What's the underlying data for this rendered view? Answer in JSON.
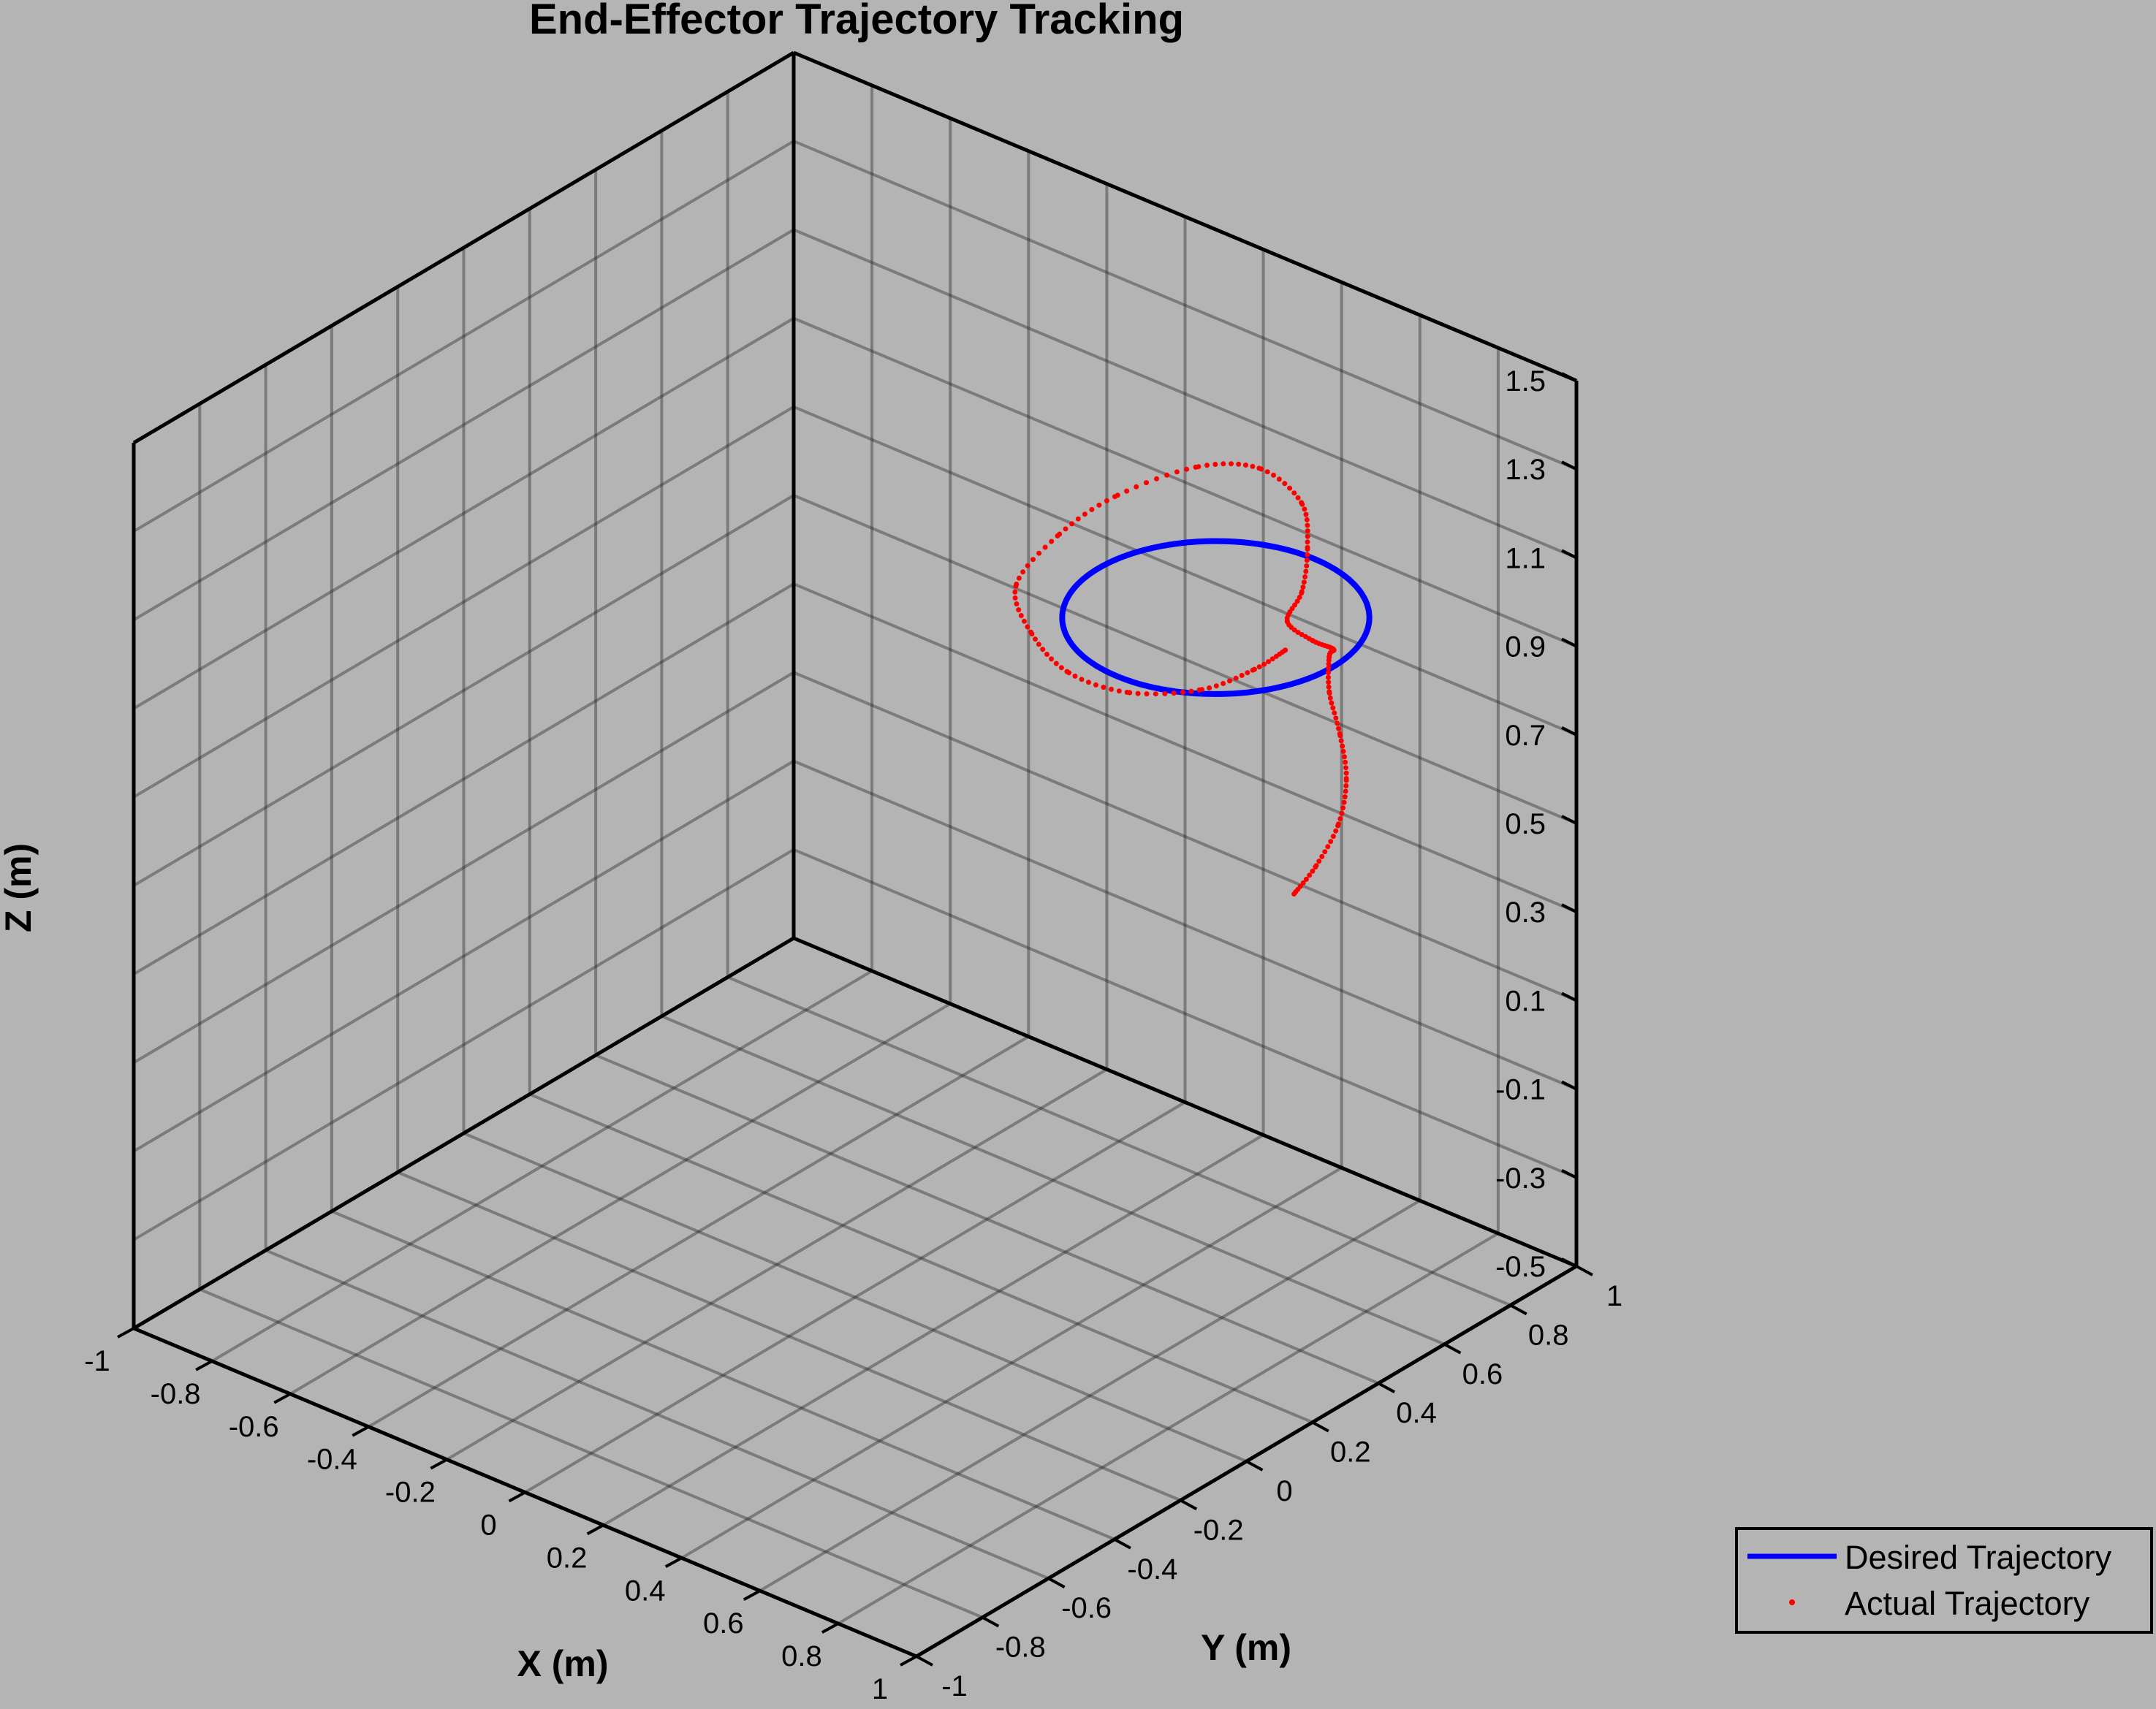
{
  "chart_data": {
    "type": "line3d",
    "title": "End-Effector Trajectory Tracking",
    "xlabel": "X (m)",
    "ylabel": "Y (m)",
    "zlabel": "Z (m)",
    "xlim": [
      -1,
      1
    ],
    "ylim": [
      -1,
      1
    ],
    "zlim": [
      -0.5,
      1.5
    ],
    "grid": true,
    "box": true,
    "background": "#b4b4b4",
    "x_ticks": [
      "-1",
      "-0.8",
      "-0.6",
      "-0.4",
      "-0.2",
      "0",
      "0.2",
      "0.4",
      "0.6",
      "0.8",
      "1"
    ],
    "y_ticks": [
      "-1",
      "-0.8",
      "-0.6",
      "-0.4",
      "-0.2",
      "0",
      "0.2",
      "0.4",
      "0.6",
      "0.8",
      "1"
    ],
    "z_ticks": [
      "-0.5",
      "-0.3",
      "-0.1",
      "0.1",
      "0.3",
      "0.5",
      "0.7",
      "0.9",
      "1.1",
      "1.3",
      "1.5"
    ],
    "legend": {
      "location": "bottom-right",
      "entries": [
        "Desired Trajectory",
        "Actual Trajectory"
      ]
    },
    "series": [
      {
        "name": "Desired Trajectory",
        "style": "line",
        "color": "#0000ff",
        "shape": "circle",
        "center": [
          0.5,
          0.5,
          1.0
        ],
        "radius": 0.3,
        "plane": "z = 1.0"
      },
      {
        "name": "Actual Trajectory",
        "style": "dots",
        "color": "#ff0000",
        "points": [
          [
            0.7,
            0.5,
            0.45
          ],
          [
            0.74,
            0.52,
            0.52
          ],
          [
            0.78,
            0.54,
            0.62
          ],
          [
            0.8,
            0.54,
            0.73
          ],
          [
            0.8,
            0.52,
            0.84
          ],
          [
            0.79,
            0.5,
            0.94
          ],
          [
            0.79,
            0.5,
            1.02
          ],
          [
            0.8,
            0.5,
            1.04
          ],
          [
            0.78,
            0.46,
            1.07
          ],
          [
            0.75,
            0.42,
            1.12
          ],
          [
            0.72,
            0.5,
            1.14
          ],
          [
            0.65,
            0.6,
            1.17
          ],
          [
            0.55,
            0.7,
            1.19
          ],
          [
            0.4,
            0.75,
            1.19
          ],
          [
            0.28,
            0.7,
            1.17
          ],
          [
            0.2,
            0.55,
            1.14
          ],
          [
            0.18,
            0.4,
            1.11
          ],
          [
            0.2,
            0.25,
            1.07
          ],
          [
            0.3,
            0.18,
            1.03
          ],
          [
            0.42,
            0.15,
            1.0
          ],
          [
            0.55,
            0.18,
            0.99
          ],
          [
            0.65,
            0.28,
            0.99
          ],
          [
            0.7,
            0.38,
            1.01
          ],
          [
            0.72,
            0.45,
            1.03
          ]
        ]
      }
    ]
  }
}
